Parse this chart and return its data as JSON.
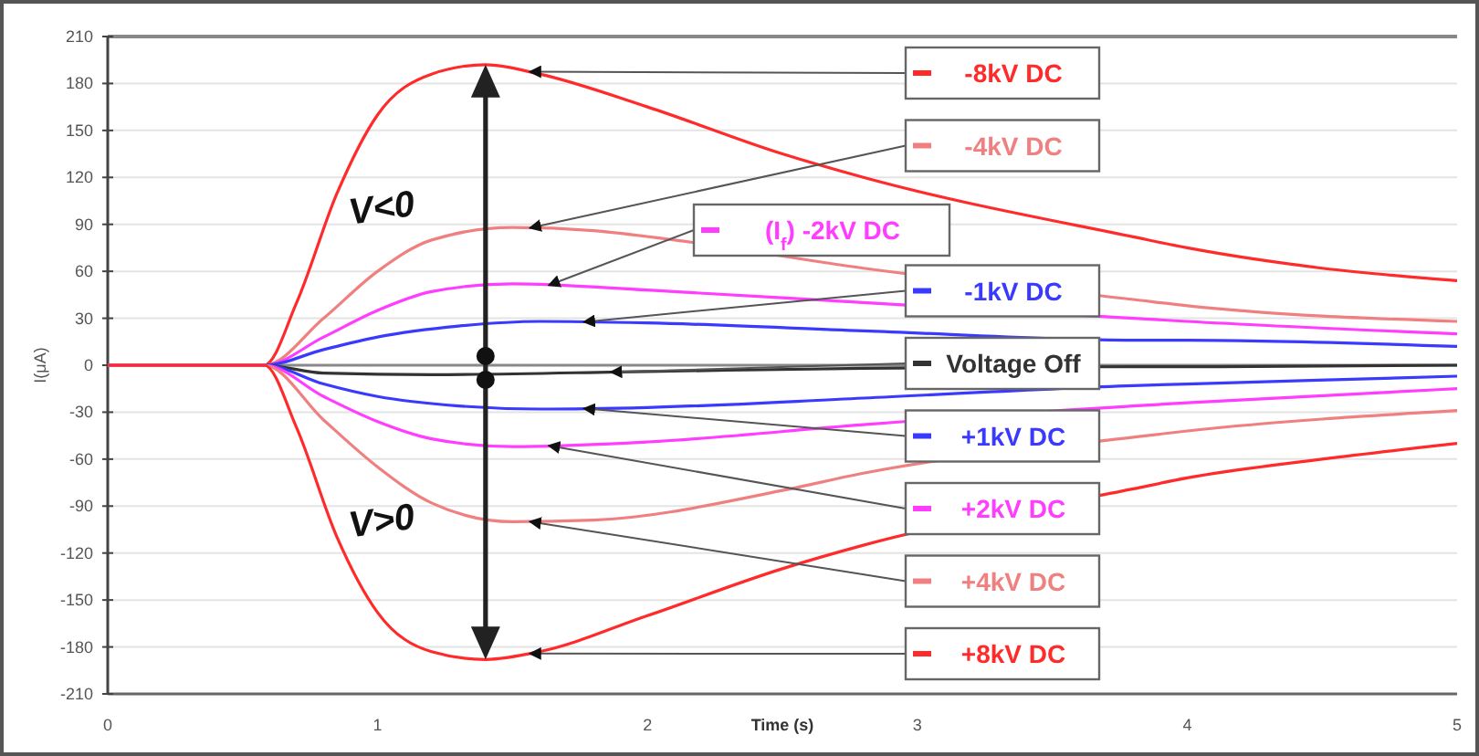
{
  "chart_data": {
    "type": "line",
    "xlabel": "Time (s)",
    "ylabel": "I(μA)",
    "xlim": [
      0,
      5
    ],
    "xticks": [
      0,
      1,
      2,
      3,
      4,
      5
    ],
    "ylim": [
      -210,
      210
    ],
    "yticks": [
      -210,
      -180,
      -150,
      -120,
      -90,
      -60,
      -30,
      0,
      30,
      60,
      90,
      120,
      150,
      180,
      210
    ],
    "grid": "y",
    "marker": "none",
    "line_style": "solid",
    "legend": "right",
    "annotations": [
      "V<0",
      "V>0"
    ],
    "series": [
      {
        "name": "-8kV DC",
        "color": "#ff2a2a",
        "x": [
          0,
          0.58,
          0.7,
          0.85,
          1.0,
          1.2,
          1.4,
          1.6,
          2.0,
          2.5,
          2.8,
          3.8,
          4.0,
          4.5,
          5.0
        ],
        "values": [
          0,
          0,
          40,
          110,
          160,
          186,
          192,
          186,
          165,
          135,
          120,
          82,
          75,
          62,
          54
        ]
      },
      {
        "name": "-4kV DC",
        "color": "#f08080",
        "x": [
          0,
          0.58,
          0.8,
          1.0,
          1.2,
          1.5,
          1.8,
          2.1,
          2.8,
          3.8,
          4.0,
          5.0
        ],
        "values": [
          0,
          0,
          30,
          60,
          80,
          88,
          86,
          80,
          62,
          42,
          38,
          28
        ]
      },
      {
        "name": "(I$_{f}$) -2kV DC",
        "color": "#ff3cff",
        "x": [
          0,
          0.58,
          0.8,
          1.0,
          1.2,
          1.5,
          2.0,
          2.8,
          3.8,
          4.0,
          5.0
        ],
        "values": [
          0,
          0,
          18,
          35,
          47,
          52,
          48,
          40,
          30,
          28,
          20
        ]
      },
      {
        "name": "-1kV DC",
        "color": "#3a3aff",
        "x": [
          0,
          0.58,
          0.8,
          1.0,
          1.3,
          1.6,
          2.0,
          2.8,
          3.8,
          4.0,
          5.0
        ],
        "values": [
          0,
          0,
          10,
          18,
          25,
          28,
          27,
          22,
          16,
          16,
          12
        ]
      },
      {
        "name": "Voltage Off",
        "color": "#333333",
        "x": [
          0,
          0.58,
          0.8,
          1.2,
          2.0,
          2.8,
          3.8,
          4.0,
          5.0
        ],
        "values": [
          0,
          0,
          -5,
          -6,
          -4,
          -2,
          -1,
          -1,
          0
        ]
      },
      {
        "name": "+1kV DC",
        "color": "#3a3aff",
        "x": [
          0,
          0.58,
          0.8,
          1.0,
          1.3,
          1.6,
          2.0,
          2.8,
          3.8,
          4.0,
          5.0
        ],
        "values": [
          0,
          0,
          -12,
          -20,
          -26,
          -28,
          -27,
          -21,
          -13,
          -12,
          -7
        ]
      },
      {
        "name": "+2kV DC",
        "color": "#ff3cff",
        "x": [
          0,
          0.58,
          0.8,
          1.0,
          1.2,
          1.5,
          2.0,
          2.8,
          3.8,
          4.0,
          5.0
        ],
        "values": [
          0,
          0,
          -20,
          -36,
          -47,
          -52,
          -49,
          -38,
          -26,
          -24,
          -15
        ]
      },
      {
        "name": "+4kV DC",
        "color": "#f08080",
        "x": [
          0,
          0.58,
          0.8,
          1.0,
          1.2,
          1.5,
          1.8,
          2.5,
          2.8,
          3.8,
          4.0,
          5.0
        ],
        "values": [
          0,
          0,
          -35,
          -65,
          -88,
          -100,
          -99,
          -80,
          -69,
          -46,
          -42,
          -29
        ]
      },
      {
        "name": "+8kV DC",
        "color": "#ff2a2a",
        "x": [
          0,
          0.58,
          0.7,
          0.85,
          1.0,
          1.2,
          1.4,
          1.6,
          2.0,
          2.5,
          2.8,
          3.8,
          4.0,
          4.5,
          5.0
        ],
        "values": [
          0,
          0,
          -40,
          -110,
          -158,
          -183,
          -188,
          -183,
          -160,
          -130,
          -115,
          -79,
          -72,
          -60,
          -50
        ]
      }
    ]
  }
}
